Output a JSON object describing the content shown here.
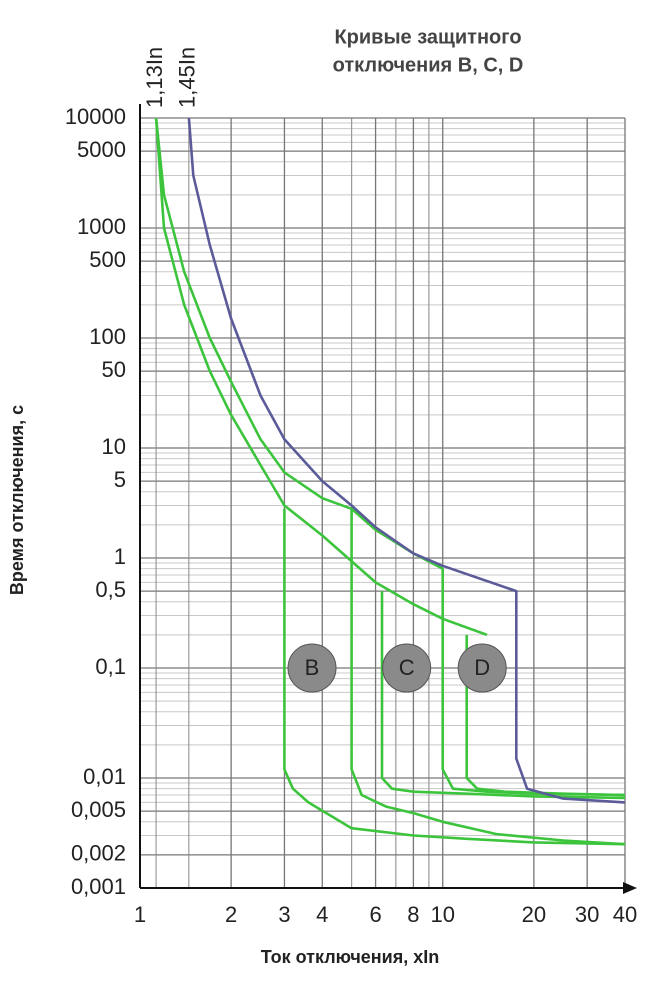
{
  "chart_data": {
    "type": "line",
    "title": [
      "Кривые защитного",
      "отключения B, C, D"
    ],
    "x_label": "Ток отключения, xIn",
    "y_label": "Время отключения, с",
    "xscale": "log",
    "yscale": "log",
    "grid": true,
    "xlim": [
      1,
      40
    ],
    "ylim": [
      0.001,
      10000
    ],
    "xticks": [
      1,
      2,
      3,
      4,
      6,
      8,
      10,
      20,
      30,
      40
    ],
    "yticks": [
      {
        "value": 0.001,
        "label": "0,001"
      },
      {
        "value": 0.002,
        "label": "0,002"
      },
      {
        "value": 0.005,
        "label": "0,005"
      },
      {
        "value": 0.01,
        "label": "0,01"
      },
      {
        "value": 0.1,
        "label": "0,1"
      },
      {
        "value": 0.5,
        "label": "0,5"
      },
      1,
      5,
      10,
      50,
      100,
      500,
      1000,
      5000,
      10000
    ],
    "xgrid": [
      5,
      7,
      9
    ],
    "ygrid": [
      0.003,
      0.004,
      0.006,
      0.007,
      0.008,
      0.009,
      0.02,
      0.03,
      0.04,
      0.05,
      0.06,
      0.07,
      0.08,
      0.09,
      0.2,
      0.3,
      0.4,
      0.6,
      0.7,
      0.8,
      0.9,
      2,
      3,
      4,
      6,
      7,
      8,
      9,
      20,
      30,
      40,
      60,
      70,
      80,
      90,
      200,
      300,
      400,
      600,
      700,
      800,
      900,
      2000,
      3000,
      4000,
      6000,
      7000,
      8000,
      9000
    ],
    "markers": [
      {
        "x": 1.13,
        "label": "1,13In"
      },
      {
        "x": 1.45,
        "label": "1,45In"
      }
    ],
    "annotations": [
      {
        "text": "B",
        "x": 3.7,
        "y": 0.1
      },
      {
        "text": "C",
        "x": 7.6,
        "y": 0.1
      },
      {
        "text": "D",
        "x": 13.5,
        "y": 0.1
      }
    ],
    "series": [
      {
        "color": "#3dc43d",
        "x": [
          1.13,
          1.2,
          1.4,
          1.7,
          2,
          2.5,
          3,
          4,
          6,
          8,
          10,
          14
        ],
        "values": [
          10000,
          1000,
          200,
          50,
          20,
          7,
          3,
          1.6,
          0.6,
          0.38,
          0.28,
          0.2
        ]
      },
      {
        "color": "#3dc43d",
        "x": [
          1.13,
          1.2,
          1.4,
          1.7,
          2,
          2.5,
          3,
          4,
          5,
          6,
          8,
          10
        ],
        "values": [
          10000,
          2000,
          400,
          100,
          40,
          12,
          6,
          3.5,
          2.8,
          1.8,
          1.1,
          0.8
        ]
      },
      {
        "color": "#3dc43d",
        "x": [
          3,
          3,
          3.2,
          3.6,
          5,
          8,
          12,
          20,
          40
        ],
        "values": [
          2.8,
          0.012,
          0.008,
          0.006,
          0.0035,
          0.003,
          0.0028,
          0.0026,
          0.0025
        ]
      },
      {
        "color": "#3dc43d",
        "x": [
          5,
          5,
          5.4,
          6.5,
          8,
          10,
          15,
          25,
          40
        ],
        "values": [
          2.8,
          0.012,
          0.007,
          0.0055,
          0.0048,
          0.004,
          0.0031,
          0.0027,
          0.0025
        ]
      },
      {
        "color": "#3dc43d",
        "x": [
          6.3,
          6.3,
          6.8,
          8,
          12,
          20,
          40
        ],
        "values": [
          0.5,
          0.01,
          0.008,
          0.0075,
          0.0072,
          0.0068,
          0.0066
        ]
      },
      {
        "color": "#3dc43d",
        "x": [
          10,
          10,
          10.8,
          14,
          20,
          40
        ],
        "values": [
          0.8,
          0.012,
          0.008,
          0.0075,
          0.0072,
          0.007
        ]
      },
      {
        "color": "#3dc43d",
        "x": [
          12,
          12,
          13,
          16,
          25,
          40
        ],
        "values": [
          0.2,
          0.01,
          0.008,
          0.0075,
          0.0072,
          0.007
        ]
      },
      {
        "color": "#5b5b99",
        "x": [
          1.45,
          1.5,
          1.7,
          2,
          2.5,
          3,
          4,
          5,
          6,
          8,
          10,
          17.5,
          17.5,
          19,
          25,
          40
        ],
        "values": [
          10000,
          3000,
          700,
          150,
          30,
          12,
          5,
          3,
          1.9,
          1.1,
          0.85,
          0.5,
          0.015,
          0.008,
          0.0065,
          0.006
        ]
      }
    ]
  }
}
